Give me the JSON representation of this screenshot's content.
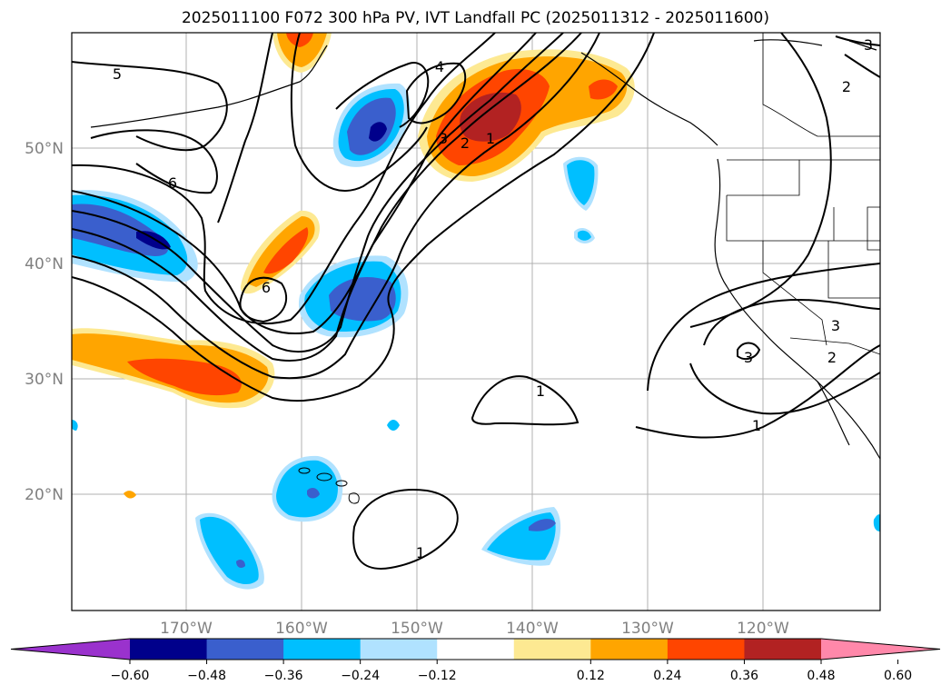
{
  "title": "2025011100 F072 300 hPa PV, IVT Landfall PC (2025011312 - 2025011600)",
  "lat_labels": [
    "50°N",
    "40°N",
    "30°N",
    "20°N"
  ],
  "lon_labels": [
    "170°W",
    "160°W",
    "150°W",
    "140°W",
    "130°W",
    "120°W"
  ],
  "contour_labels": [
    "5",
    "4",
    "6",
    "3",
    "2",
    "1",
    "6",
    "1",
    "1",
    "1",
    "3",
    "3",
    "2",
    "2",
    "3"
  ],
  "colorbar": {
    "ticks": [
      "−0.60",
      "−0.48",
      "−0.36",
      "−0.24",
      "−0.12",
      "0.12",
      "0.24",
      "0.36",
      "0.48",
      "0.60"
    ],
    "colors": [
      "#9a32cd",
      "#00008b",
      "#3a5fcd",
      "#00bfff",
      "#b0e2ff",
      "#ffffff",
      "#fde992",
      "#ffa500",
      "#ff4500",
      "#b22222",
      "#ff88aa"
    ]
  }
}
